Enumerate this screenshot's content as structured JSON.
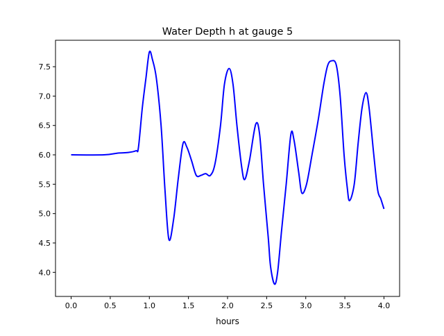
{
  "chart_data": {
    "type": "line",
    "title": "Water Depth h at gauge 5",
    "xlabel": "hours",
    "ylabel": "",
    "xlim": [
      -0.2,
      4.2
    ],
    "ylim": [
      3.59,
      7.95
    ],
    "xticks": [
      0.0,
      0.5,
      1.0,
      1.5,
      2.0,
      2.5,
      3.0,
      3.5,
      4.0
    ],
    "xtick_labels": [
      "0.0",
      "0.5",
      "1.0",
      "1.5",
      "2.0",
      "2.5",
      "3.0",
      "3.5",
      "4.0"
    ],
    "yticks": [
      4.0,
      4.5,
      5.0,
      5.5,
      6.0,
      6.5,
      7.0,
      7.5
    ],
    "ytick_labels": [
      "4.0",
      "4.5",
      "5.0",
      "5.5",
      "6.0",
      "6.5",
      "7.0",
      "7.5"
    ],
    "grid": false,
    "series": [
      {
        "name": "h",
        "color": "#0000ff",
        "x": [
          0,
          0.42,
          0.6,
          0.73,
          0.83,
          0.86,
          0.91,
          0.956,
          1.0,
          1.04,
          1.09,
          1.15,
          1.2,
          1.25,
          1.31,
          1.37,
          1.43,
          1.48,
          1.54,
          1.6,
          1.66,
          1.72,
          1.78,
          1.84,
          1.91,
          1.96,
          2.02,
          2.07,
          2.12,
          2.18,
          2.22,
          2.28,
          2.36,
          2.41,
          2.46,
          2.52,
          2.55,
          2.6,
          2.64,
          2.69,
          2.75,
          2.81,
          2.85,
          2.91,
          2.95,
          3.01,
          3.08,
          3.16,
          3.23,
          3.28,
          3.33,
          3.39,
          3.44,
          3.49,
          3.53,
          3.56,
          3.62,
          3.67,
          3.72,
          3.77,
          3.81,
          3.87,
          3.92,
          3.96,
          4.0
        ],
        "y": [
          6.0,
          6.0,
          6.03,
          6.04,
          6.07,
          6.12,
          6.8,
          7.3,
          7.75,
          7.62,
          7.3,
          6.5,
          5.4,
          4.56,
          4.9,
          5.6,
          6.19,
          6.13,
          5.9,
          5.65,
          5.65,
          5.68,
          5.65,
          5.85,
          6.5,
          7.2,
          7.47,
          7.2,
          6.5,
          5.8,
          5.58,
          5.9,
          6.52,
          6.35,
          5.5,
          4.6,
          4.1,
          3.8,
          4.0,
          4.7,
          5.5,
          6.35,
          6.25,
          5.7,
          5.35,
          5.5,
          6.0,
          6.6,
          7.2,
          7.52,
          7.6,
          7.53,
          7.0,
          6.0,
          5.45,
          5.22,
          5.5,
          6.2,
          6.8,
          7.06,
          6.8,
          6.0,
          5.4,
          5.25,
          5.08
        ]
      }
    ]
  }
}
